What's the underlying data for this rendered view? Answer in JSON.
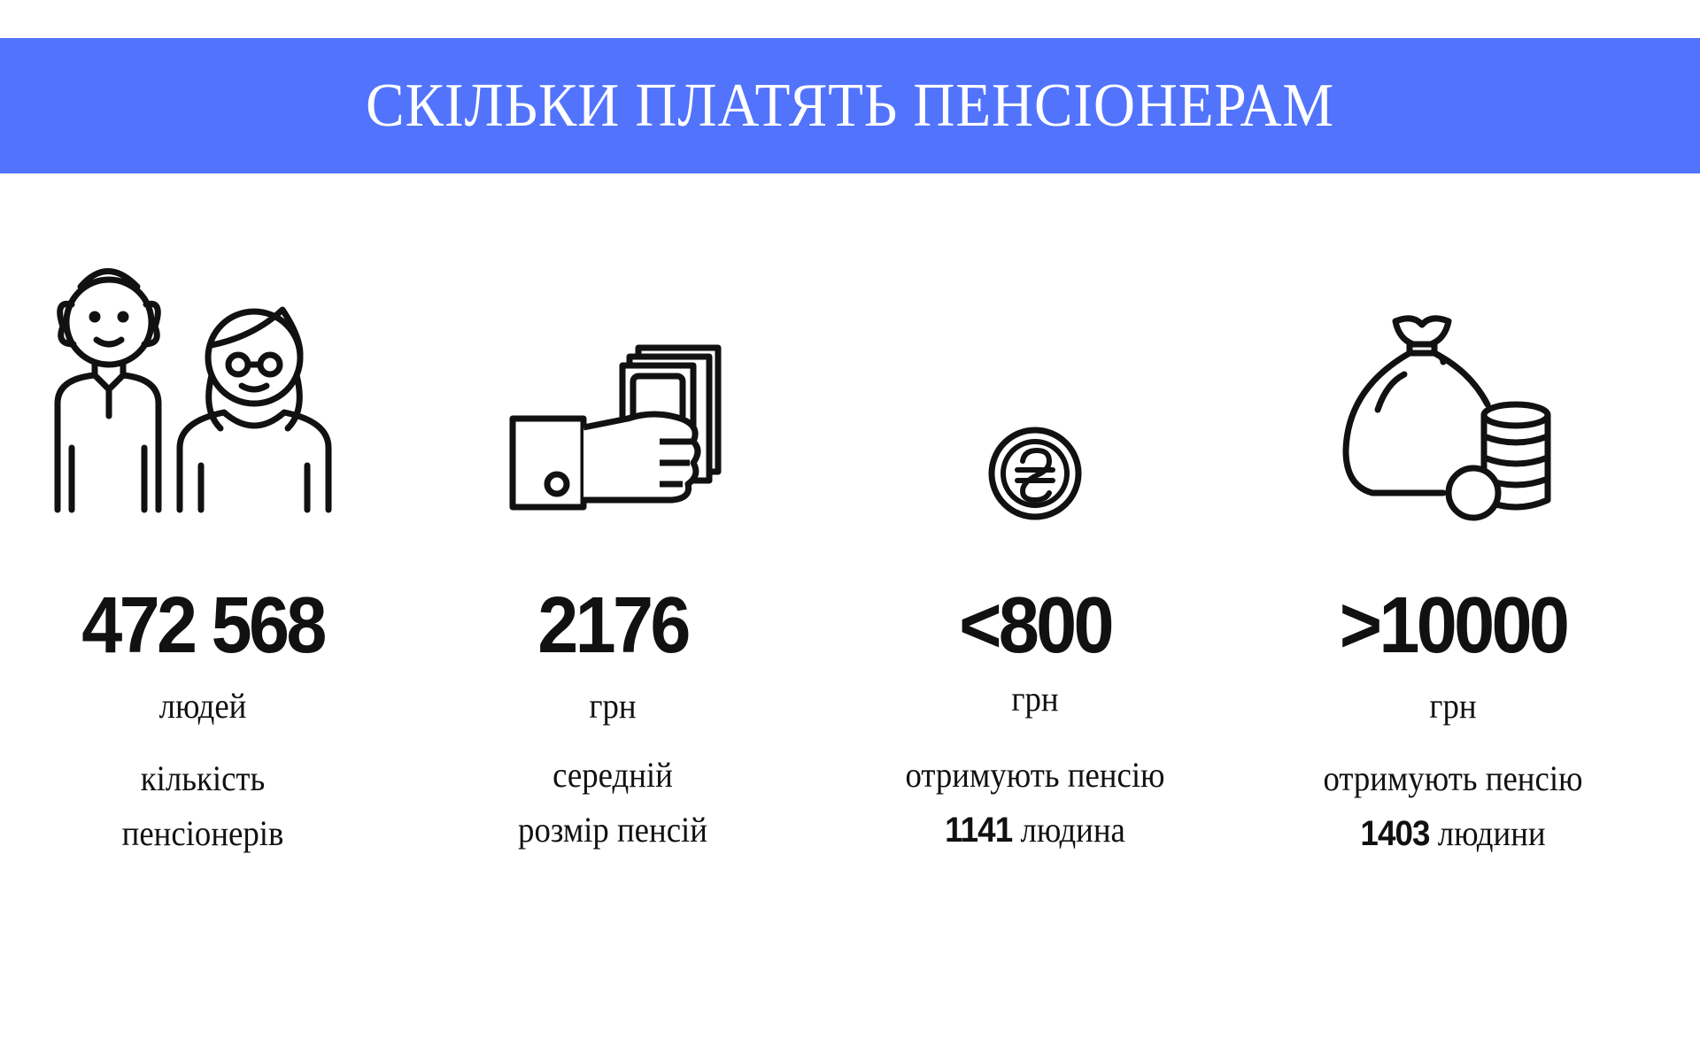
{
  "title": "СКІЛЬКИ ПЛАТЯТЬ ПЕНСІОНЕРАМ",
  "colors": {
    "banner": "#5274fc",
    "title_text": "#ffffff",
    "text": "#111111"
  },
  "stats": [
    {
      "icon": "elderly-couple-icon",
      "value": "472 568",
      "unit": "людей",
      "line1": "кількість",
      "line2": "пенсіонерів"
    },
    {
      "icon": "hand-with-money-icon",
      "value": "2176",
      "unit": "грн",
      "line1": "середній",
      "line2": "розмір пенсій"
    },
    {
      "icon": "hryvnia-coin-icon",
      "value": "<800",
      "unit": "грн",
      "line1": "отримують пенсію",
      "count": "1141",
      "line2": "людина"
    },
    {
      "icon": "money-bag-coins-icon",
      "value": ">10000",
      "unit": "грн",
      "line1": "отримують пенсію",
      "count": "1403",
      "line2": "людини"
    }
  ]
}
